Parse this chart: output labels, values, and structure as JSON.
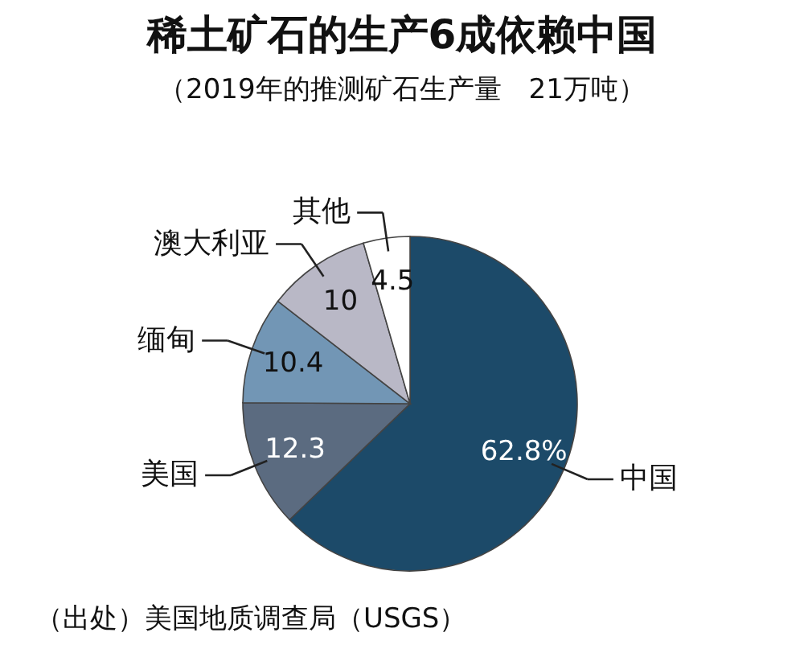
{
  "chart_data": {
    "type": "pie",
    "title": "稀土矿石的生产6成依赖中国",
    "subtitle": "（2019年的推测矿石生产量　21万吨）",
    "categories": [
      "中国",
      "美国",
      "缅甸",
      "澳大利亚",
      "其他"
    ],
    "values": [
      62.8,
      12.3,
      10.4,
      10,
      4.5
    ],
    "colors": [
      "#1c4a69",
      "#5b6b80",
      "#7296b5",
      "#b9b8c6",
      "#ffffff"
    ],
    "value_labels": [
      "62.8%",
      "12.3",
      "10.4",
      "10",
      "4.5"
    ],
    "annotations": [
      "（出处）美国地质调查局（USGS）"
    ]
  }
}
